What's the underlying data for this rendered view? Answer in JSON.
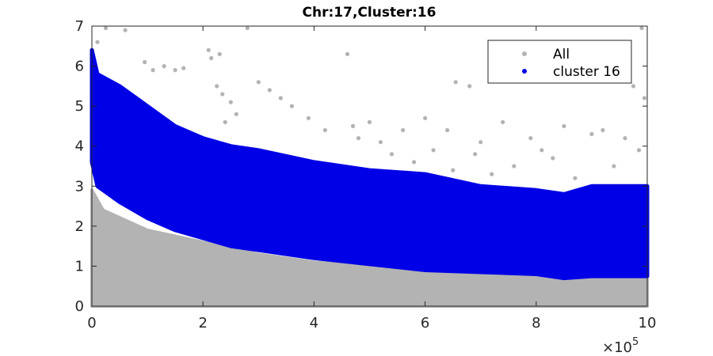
{
  "chart_data": {
    "type": "scatter",
    "title": "Chr:17,Cluster:16",
    "xlabel": "",
    "ylabel": "",
    "xlim": [
      0,
      1000000
    ],
    "ylim": [
      0,
      7
    ],
    "x_ticks": [
      0,
      200000,
      400000,
      600000,
      800000,
      1000000
    ],
    "x_tick_labels": [
      "0",
      "2",
      "4",
      "6",
      "8",
      "10"
    ],
    "x_exponent_label": "×10",
    "x_exponent_power": "5",
    "y_ticks": [
      0,
      1,
      2,
      3,
      4,
      5,
      6,
      7
    ],
    "y_tick_labels": [
      "0",
      "1",
      "2",
      "3",
      "4",
      "5",
      "6",
      "7"
    ],
    "grid": false,
    "legend_position": "top-right",
    "series": [
      {
        "name": "All",
        "color": "#b3b3b3",
        "band_x": [
          0,
          20000,
          100000,
          200000,
          300000,
          400000,
          500000,
          600000,
          700000,
          800000,
          850000,
          900000,
          1000000
        ],
        "band_low": [
          0,
          0,
          0,
          0,
          0,
          0,
          0,
          0,
          0,
          0,
          0,
          0,
          0
        ],
        "band_high": [
          2.9,
          2.4,
          1.9,
          1.6,
          1.3,
          1.1,
          1.0,
          0.95,
          0.9,
          0.85,
          0.75,
          0.8,
          0.8
        ],
        "outliers": [
          [
            10000,
            6.6
          ],
          [
            25000,
            6.95
          ],
          [
            60000,
            6.9
          ],
          [
            95000,
            6.1
          ],
          [
            110000,
            5.9
          ],
          [
            130000,
            6.0
          ],
          [
            150000,
            5.9
          ],
          [
            165000,
            5.95
          ],
          [
            210000,
            6.4
          ],
          [
            215000,
            6.2
          ],
          [
            230000,
            6.3
          ],
          [
            225000,
            5.5
          ],
          [
            235000,
            5.3
          ],
          [
            250000,
            5.1
          ],
          [
            240000,
            4.6
          ],
          [
            260000,
            4.8
          ],
          [
            280000,
            6.95
          ],
          [
            300000,
            5.6
          ],
          [
            320000,
            5.4
          ],
          [
            340000,
            5.2
          ],
          [
            360000,
            5.0
          ],
          [
            390000,
            4.7
          ],
          [
            420000,
            4.4
          ],
          [
            460000,
            6.3
          ],
          [
            470000,
            4.5
          ],
          [
            480000,
            4.2
          ],
          [
            500000,
            4.6
          ],
          [
            520000,
            4.1
          ],
          [
            540000,
            3.8
          ],
          [
            560000,
            4.4
          ],
          [
            580000,
            3.6
          ],
          [
            600000,
            4.7
          ],
          [
            615000,
            3.9
          ],
          [
            640000,
            4.4
          ],
          [
            650000,
            3.4
          ],
          [
            655000,
            5.6
          ],
          [
            680000,
            5.5
          ],
          [
            690000,
            3.8
          ],
          [
            700000,
            4.1
          ],
          [
            720000,
            3.3
          ],
          [
            740000,
            4.6
          ],
          [
            760000,
            3.5
          ],
          [
            790000,
            4.2
          ],
          [
            810000,
            3.9
          ],
          [
            830000,
            3.7
          ],
          [
            850000,
            4.5
          ],
          [
            870000,
            3.2
          ],
          [
            900000,
            4.3
          ],
          [
            920000,
            4.4
          ],
          [
            940000,
            3.5
          ],
          [
            960000,
            4.2
          ],
          [
            975000,
            5.5
          ],
          [
            985000,
            3.9
          ],
          [
            990000,
            6.95
          ],
          [
            995000,
            5.2
          ]
        ]
      },
      {
        "name": "cluster 16",
        "color": "#0000e6",
        "band_x": [
          0,
          10000,
          50000,
          100000,
          150000,
          200000,
          250000,
          300000,
          400000,
          500000,
          600000,
          700000,
          800000,
          850000,
          900000,
          1000000
        ],
        "band_low": [
          3.6,
          3.0,
          2.6,
          2.2,
          1.9,
          1.7,
          1.5,
          1.4,
          1.2,
          1.05,
          0.9,
          0.85,
          0.8,
          0.7,
          0.75,
          0.75
        ],
        "band_high": [
          6.4,
          5.8,
          5.5,
          5.0,
          4.5,
          4.2,
          4.0,
          3.9,
          3.6,
          3.4,
          3.3,
          3.0,
          2.9,
          2.8,
          3.0,
          3.0
        ]
      }
    ]
  }
}
